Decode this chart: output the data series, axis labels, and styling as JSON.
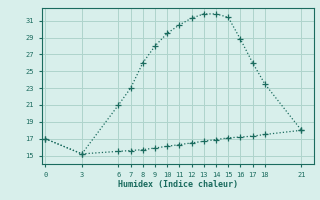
{
  "xlabel": "Humidex (Indice chaleur)",
  "bg_color": "#d8efeb",
  "grid_color": "#aed4cc",
  "line_color": "#1a6b5e",
  "spine_color": "#1a6b5e",
  "x_ticks": [
    0,
    3,
    6,
    7,
    8,
    9,
    10,
    11,
    12,
    13,
    14,
    15,
    16,
    17,
    18,
    21
  ],
  "y_ticks": [
    15,
    17,
    19,
    21,
    23,
    25,
    27,
    29,
    31
  ],
  "ylim": [
    14.0,
    32.5
  ],
  "xlim": [
    -0.3,
    22.0
  ],
  "upper_x": [
    0,
    3,
    6,
    7,
    8,
    9,
    10,
    11,
    12,
    13,
    14,
    15,
    16,
    17,
    18,
    21
  ],
  "upper_y": [
    17,
    15.2,
    21,
    23,
    26,
    28,
    29.5,
    30.5,
    31.3,
    31.8,
    31.8,
    31.4,
    28.8,
    26,
    23.5,
    18
  ],
  "lower_x": [
    0,
    3,
    6,
    7,
    8,
    9,
    10,
    11,
    12,
    13,
    14,
    15,
    16,
    17,
    18,
    21
  ],
  "lower_y": [
    17,
    15.2,
    15.5,
    15.6,
    15.7,
    15.9,
    16.1,
    16.3,
    16.5,
    16.7,
    16.9,
    17.1,
    17.2,
    17.3,
    17.5,
    18.0
  ]
}
